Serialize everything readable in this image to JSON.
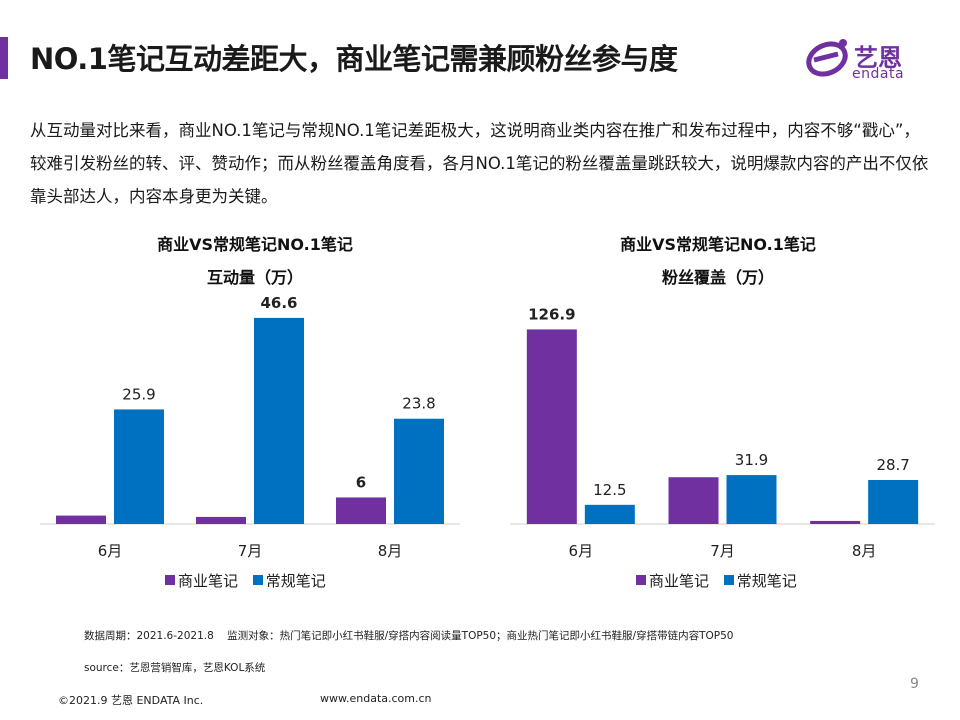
{
  "header": {
    "title": "NO.1笔记互动差距大，商业笔记需兼顾粉丝参与度",
    "logo_cn": "艺恩",
    "logo_en": "endata"
  },
  "intro": "从互动量对比来看，商业NO.1笔记与常规NO.1笔记差距极大，这说明商业类内容在推广和发布过程中，内容不够“戳心”，较难引发粉丝的转、评、赞动作；而从粉丝覆盖角度看，各月NO.1笔记的粉丝覆盖量跳跃较大，说明爆款内容的产出不仅依靠头部达人，内容本身更为关键。",
  "colors": {
    "commercial": "#7030a0",
    "regular": "#0070c0",
    "accent": "#7030a0"
  },
  "chart_data": [
    {
      "type": "bar",
      "title": "商业VS常规笔记NO.1笔记",
      "subtitle": "互动量（万）",
      "categories": [
        "6月",
        "7月",
        "8月"
      ],
      "series": [
        {
          "name": "商业笔记",
          "values": [
            1.9,
            1.6,
            6
          ],
          "labels": [
            "",
            "",
            "6"
          ]
        },
        {
          "name": "常规笔记",
          "values": [
            25.9,
            46.6,
            23.8
          ],
          "labels": [
            "25.9",
            "46.6",
            "23.8"
          ]
        }
      ],
      "ylim": [
        0,
        52
      ],
      "grid": false,
      "legend": "bottom"
    },
    {
      "type": "bar",
      "title": "商业VS常规笔记NO.1笔记",
      "subtitle": "粉丝覆盖（万）",
      "categories": [
        "6月",
        "7月",
        "8月"
      ],
      "series": [
        {
          "name": "商业笔记",
          "values": [
            126.9,
            30.5,
            2
          ],
          "labels": [
            "126.9",
            "",
            ""
          ]
        },
        {
          "name": "常规笔记",
          "values": [
            12.5,
            31.9,
            28.7
          ],
          "labels": [
            "12.5",
            "31.9",
            "28.7"
          ]
        }
      ],
      "ylim": [
        0,
        150
      ],
      "grid": false,
      "legend": "bottom"
    }
  ],
  "footer": {
    "period": "数据周期：2021.6-2021.8",
    "scope": "监测对象：热门笔记即小红书鞋服/穿搭内容阅读量TOP50；商业热门笔记即小红书鞋服/穿搭带链内容TOP50",
    "source": "source：艺恩营销智库，艺恩KOL系统",
    "copyright": "©2021.9 艺恩 ENDATA Inc.",
    "website": "www.endata.com.cn",
    "page": "9"
  }
}
